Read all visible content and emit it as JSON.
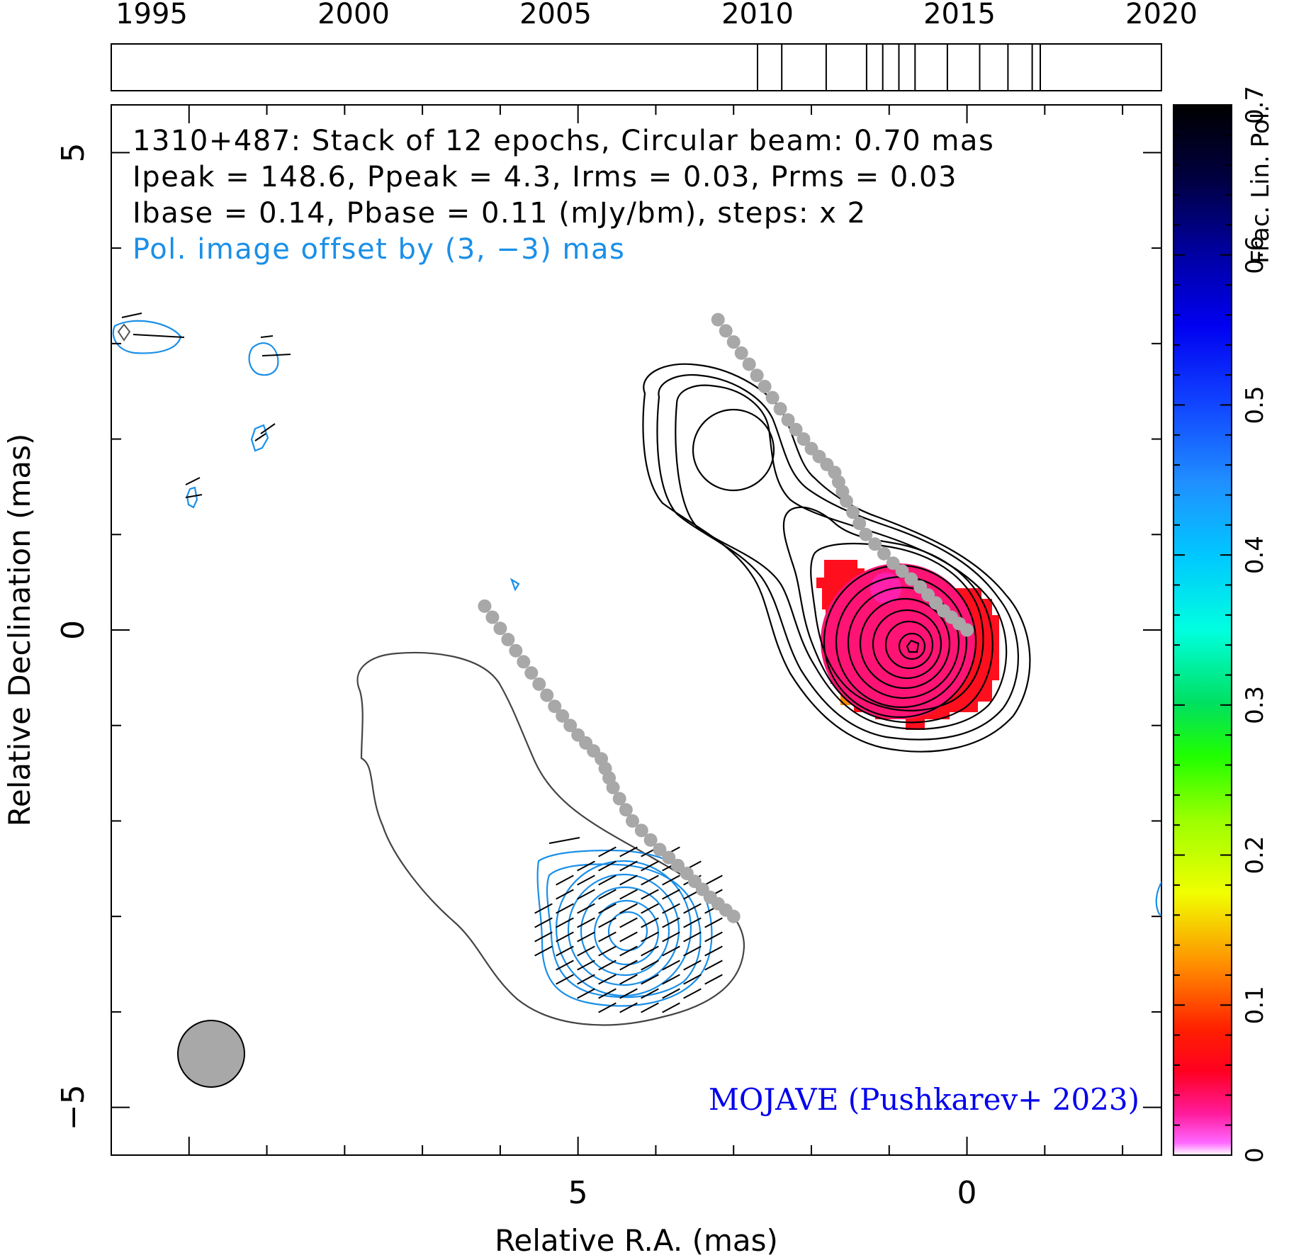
{
  "chart_data": {
    "type": "contour",
    "xlabel": "Relative R.A. (mas)",
    "ylabel": "Relative Declination (mas)",
    "xlim": [
      11,
      -2.5
    ],
    "ylim": [
      -5.5,
      5.5
    ],
    "x_ticks": [
      5,
      0
    ],
    "y_ticks": [
      5,
      0,
      -5
    ],
    "header_lines": [
      "1310+487: Stack of 12 epochs, Circular beam: 0.70 mas",
      "Ipeak = 148.6, Ppeak = 4.3, Irms = 0.03, Prms = 0.03",
      "Ibase = 0.14, Pbase = 0.11 (mJy/bm), steps: x 2"
    ],
    "pol_note": "Pol. image offset by (3, −3) mas",
    "credit": "MOJAVE (Pushkarev+ 2023)",
    "timeline": {
      "ticks": [
        "1995",
        "2000",
        "2005",
        "2010",
        "2015",
        "2020"
      ],
      "range": [
        1994,
        2020
      ],
      "epochs": [
        2010.0,
        2010.6,
        2011.7,
        2012.7,
        2013.1,
        2013.5,
        2013.9,
        2014.7,
        2015.5,
        2016.2,
        2016.8,
        2017.0
      ]
    },
    "colorbar": {
      "label": "Frac. Lin. Pol.",
      "ticks": [
        "0",
        "0.1",
        "0.2",
        "0.3",
        "0.4",
        "0.5",
        "0.6",
        "0.7"
      ],
      "range": [
        0,
        0.7
      ]
    },
    "ridge_line": {
      "x": [
        0.0,
        0.3,
        0.6,
        0.95,
        1.3,
        1.55,
        1.7,
        2.0,
        2.3,
        2.6,
        2.9,
        3.2
      ],
      "y": [
        0.0,
        0.2,
        0.45,
        0.7,
        1.0,
        1.35,
        1.65,
        1.9,
        2.2,
        2.55,
        2.9,
        3.25
      ]
    },
    "beam_diameter_mas": 0.7,
    "beam_center": [
      9.6,
      -4.25
    ]
  },
  "colors": {
    "stokes_i_contours": "#000000",
    "pol_contours": "#1a8fe8",
    "ridge_line": "#a8a8a8",
    "frac_pol_fill": "#ff1060",
    "credit_text": "#0000ee",
    "pol_note_text": "#1a8fe8"
  }
}
